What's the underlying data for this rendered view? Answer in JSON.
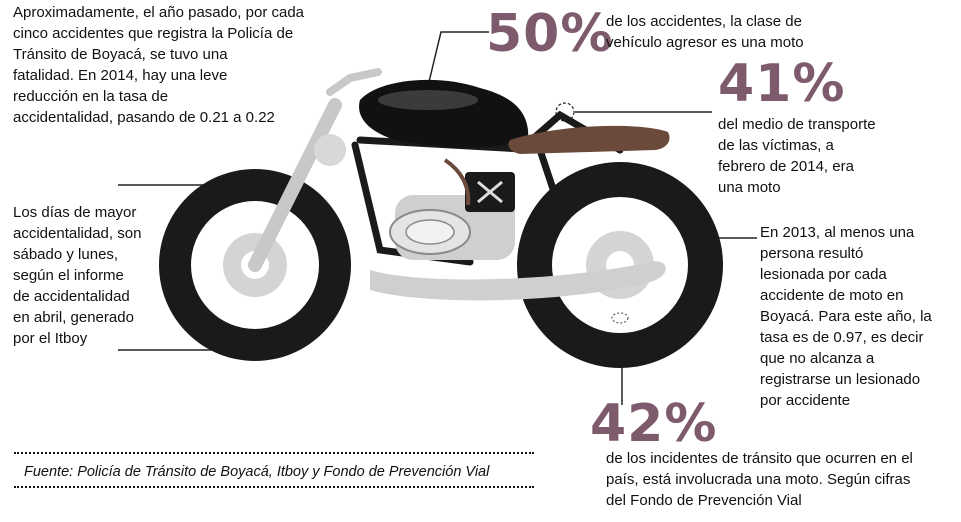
{
  "blocks": {
    "top_left": "Aproximadamente, el año pasado,  por cada\ncinco accidentes que registra la Policía de\nTránsito de Boyacá, se tuvo una\nfatalidad. En 2014, hay una leve\nreducción en la  tasa de\naccidentalidad, pasando de 0.21 a 0.22",
    "left_mid": "Los días de mayor\naccidentalidad, son\nsábado y lunes,\nsegún el informe\nde accidentalidad\nen abril, generado\npor el Itboy",
    "stat1_value": "50%",
    "stat1_text": "de los accidentes, la clase de\nvehículo agresor es una moto",
    "stat2_value": "41%",
    "stat2_text": "del medio de transporte\nde las víctimas, a\nfebrero de 2014,  era\nuna moto",
    "right_mid": "En 2013, al menos una\npersona resultó\nlesionada por cada\naccidente de moto en\nBoyacá. Para este año, la\ntasa es de 0.97, es decir\nque no alcanza a\nregistrarse un lesionado\npor accidente",
    "stat3_value": "42%",
    "stat3_text": "de los incidentes de tránsito que ocurren en el\npaís, está involucrada una moto. Según cifras\ndel Fondo de Prevención Vial"
  },
  "source": "Fuente: Policía de Tránsito de Boyacá, Itboy y Fondo de Prevención Vial",
  "colors": {
    "accent": "#7d5a6c",
    "tank": "#111111",
    "seat": "#6b4a3c",
    "wheel": "#1a1a1a",
    "chrome": "#c8c8c8"
  }
}
